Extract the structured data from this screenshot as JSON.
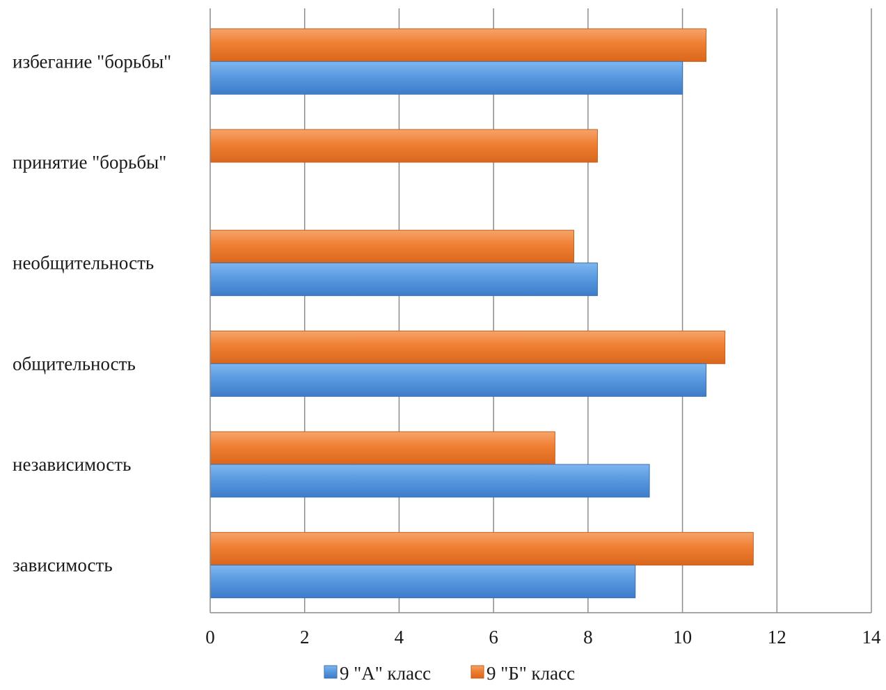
{
  "chart_data": {
    "type": "bar",
    "orientation": "horizontal",
    "categories": [
      "зависимость",
      "независимость",
      "общительность",
      "необщительность",
      "принятие \"борьбы\"",
      "избегание \"борьбы\""
    ],
    "series": [
      {
        "name": "9 \"А\" класс",
        "color": "#4f8fd6",
        "values": [
          9.0,
          9.3,
          10.5,
          8.2,
          0,
          10.0
        ]
      },
      {
        "name": "9 \"Б\" класс",
        "color": "#ee7a2b",
        "values": [
          11.5,
          7.3,
          10.9,
          7.7,
          8.2,
          10.5
        ]
      }
    ],
    "xlim": [
      0,
      14
    ],
    "xticks": [
      "0",
      "2",
      "4",
      "6",
      "8",
      "10",
      "12",
      "14"
    ],
    "grid": true,
    "legend_position": "bottom"
  }
}
